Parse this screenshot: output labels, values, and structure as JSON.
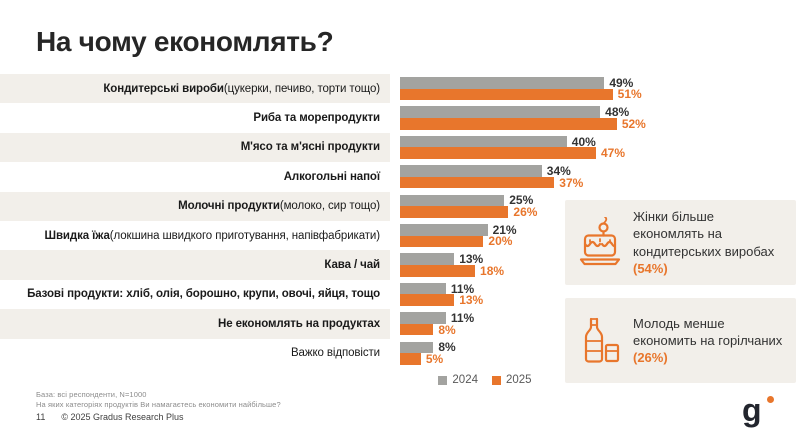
{
  "slide": {
    "title": "На чому економлять?",
    "page_number": "11",
    "copyright": "© 2025 Gradus Research Plus",
    "base_note": "База: всі респонденти, N=1000",
    "question_note": "На яких категоріях продуктів Ви намагаєтесь економити найбільше?",
    "logo_text": "g"
  },
  "colors": {
    "accent_orange": "#e8762c",
    "bar_gray": "#a3a3a0",
    "stripe_beige": "#f2efea",
    "value_dark": "#333333"
  },
  "chart_data": {
    "type": "bar",
    "orientation": "horizontal",
    "value_suffix": "%",
    "grid": false,
    "legend_position": "bottom",
    "xlim": [
      0,
      60
    ],
    "categories": [
      {
        "label": "Кондитерські вироби",
        "note": " (цукерки, печиво, торти тощо)",
        "bold": true
      },
      {
        "label": "Риба та морепродукти",
        "note": "",
        "bold": true
      },
      {
        "label": "М'ясо та м'ясні продукти",
        "note": "",
        "bold": true
      },
      {
        "label": "Алкогольні напої",
        "note": "",
        "bold": true
      },
      {
        "label": "Молочні продукти",
        "note": " (молоко, сир тощо)",
        "bold": true
      },
      {
        "label": "Швидка їжа",
        "note": " (локшина швидкого приготування, напівфабрикати)",
        "bold": true
      },
      {
        "label": "Кава / чай",
        "note": "",
        "bold": true
      },
      {
        "label": "Базові продукти: хліб, олія, борошно, крупи, овочі, яйця, тощо",
        "note": "",
        "bold": true
      },
      {
        "label": "Не економлять на продуктах",
        "note": "",
        "bold": true
      },
      {
        "label": "Важко відповісти",
        "note": "",
        "bold": false
      }
    ],
    "series": [
      {
        "name": "2024",
        "color": "#a3a3a0",
        "values": [
          49,
          48,
          40,
          34,
          25,
          21,
          13,
          11,
          11,
          8
        ]
      },
      {
        "name": "2025",
        "color": "#e8762c",
        "values": [
          51,
          52,
          47,
          37,
          26,
          20,
          18,
          13,
          8,
          5
        ]
      }
    ]
  },
  "callouts": [
    {
      "icon": "cake-icon",
      "text": "Жінки більше економлять на кондитерських виробах ",
      "highlight": "(54%)"
    },
    {
      "icon": "bottle-icon",
      "text": "Молодь менше економить на горілчаних ",
      "highlight": "(26%)"
    }
  ]
}
